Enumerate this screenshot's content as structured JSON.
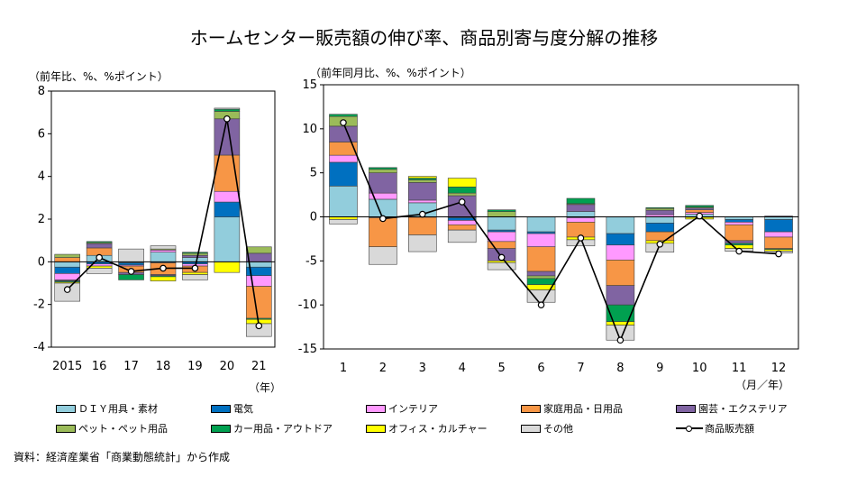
{
  "title": "ホームセンター販売額の伸び率、商品別寄与度分解の推移",
  "source": "資料：経済産業省「商業動態統計」から作成",
  "legend": [
    {
      "key": "diy",
      "label": "ＤＩＹ用具・素材",
      "color": "#92cddc"
    },
    {
      "key": "elec",
      "label": "電気",
      "color": "#0070c0"
    },
    {
      "key": "interior",
      "label": "インテリア",
      "color": "#ff99ff"
    },
    {
      "key": "household",
      "label": "家庭用品・日用品",
      "color": "#f79646"
    },
    {
      "key": "garden",
      "label": "園芸・エクステリア",
      "color": "#8064a2"
    },
    {
      "key": "pet",
      "label": "ペット・ペット用品",
      "color": "#9bbb59"
    },
    {
      "key": "car",
      "label": "カー用品・アウトドア",
      "color": "#00a050"
    },
    {
      "key": "office",
      "label": "オフィス・カルチャー",
      "color": "#ffff00"
    },
    {
      "key": "other",
      "label": "その他",
      "color": "#d9d9d9"
    },
    {
      "key": "total",
      "label": "商品販売額",
      "color": "#000000"
    }
  ],
  "chart_data": [
    {
      "type": "bar",
      "stacked": true,
      "ylabel": "（前年比、%、%ポイント）",
      "xlabel": "（年）",
      "ylim": [
        -4,
        8
      ],
      "yticks": [
        "8",
        "6",
        "4",
        "2",
        "0",
        "-2",
        "-4"
      ],
      "categories": [
        "2015",
        "16",
        "17",
        "18",
        "19",
        "20",
        "21"
      ],
      "series": [
        {
          "key": "diy",
          "values": [
            -0.25,
            0.3,
            -0.05,
            0.45,
            0.2,
            2.1,
            -0.25
          ]
        },
        {
          "key": "elec",
          "values": [
            -0.3,
            -0.1,
            -0.1,
            -0.05,
            -0.1,
            0.7,
            -0.4
          ]
        },
        {
          "key": "interior",
          "values": [
            -0.3,
            -0.1,
            -0.05,
            0.1,
            -0.1,
            0.5,
            -0.5
          ]
        },
        {
          "key": "household",
          "values": [
            0.2,
            0.35,
            -0.3,
            -0.55,
            -0.3,
            1.7,
            -1.5
          ]
        },
        {
          "key": "garden",
          "values": [
            -0.05,
            0.2,
            -0.1,
            -0.05,
            0.1,
            1.7,
            0.4
          ]
        },
        {
          "key": "pet",
          "values": [
            0.15,
            0.05,
            0.0,
            0.05,
            0.1,
            0.35,
            0.3
          ]
        },
        {
          "key": "car",
          "values": [
            -0.05,
            0.05,
            -0.25,
            -0.05,
            0.05,
            0.1,
            -0.05
          ]
        },
        {
          "key": "office",
          "values": [
            -0.05,
            -0.1,
            0.0,
            -0.2,
            -0.1,
            -0.5,
            -0.2
          ]
        },
        {
          "key": "other",
          "values": [
            -0.85,
            -0.25,
            0.6,
            0.15,
            -0.25,
            0.05,
            -0.6
          ]
        }
      ],
      "line": {
        "key": "total",
        "values": [
          -1.3,
          0.2,
          -0.45,
          -0.3,
          -0.3,
          6.7,
          -3.0
        ]
      }
    },
    {
      "type": "bar",
      "stacked": true,
      "ylabel": "（前年同月比、%、%ポイント）",
      "xlabel": "（月／年）",
      "ylim": [
        -15,
        15
      ],
      "yticks": [
        "15",
        "10",
        "5",
        "0",
        "-5",
        "-10",
        "-15"
      ],
      "categories": [
        "1",
        "2",
        "3",
        "4",
        "5",
        "6",
        "7",
        "8",
        "9",
        "10",
        "11",
        "12"
      ],
      "series": [
        {
          "key": "diy",
          "values": [
            3.5,
            2.0,
            1.6,
            -0.1,
            -1.5,
            -1.7,
            0.6,
            -1.9,
            -0.7,
            0.3,
            -0.3,
            -0.3
          ]
        },
        {
          "key": "elec",
          "values": [
            2.7,
            -0.1,
            -0.05,
            -0.3,
            -0.2,
            -0.2,
            -0.1,
            -1.3,
            -1.0,
            -0.05,
            -0.3,
            -1.4
          ]
        },
        {
          "key": "interior",
          "values": [
            0.8,
            0.7,
            0.3,
            -0.5,
            -1.1,
            -1.5,
            -0.5,
            -1.7,
            0.25,
            0.2,
            -0.3,
            -0.6
          ]
        },
        {
          "key": "household",
          "values": [
            1.5,
            -3.3,
            -2.0,
            -0.6,
            -0.8,
            -2.8,
            -1.7,
            -2.9,
            -1.0,
            0.3,
            -1.8,
            -1.3
          ]
        },
        {
          "key": "garden",
          "values": [
            1.8,
            2.3,
            2.0,
            2.4,
            -1.4,
            -0.5,
            0.8,
            -2.2,
            0.5,
            0.2,
            -0.3,
            0.1
          ]
        },
        {
          "key": "pet",
          "values": [
            1.1,
            0.4,
            0.3,
            0.3,
            0.6,
            -0.3,
            0.1,
            0.0,
            0.2,
            0.1,
            0.0,
            0.0
          ]
        },
        {
          "key": "car",
          "values": [
            0.25,
            0.2,
            0.2,
            0.7,
            0.2,
            -0.7,
            0.6,
            -1.9,
            0.1,
            0.2,
            -0.2,
            -0.1
          ]
        },
        {
          "key": "office",
          "values": [
            -0.3,
            0.0,
            0.2,
            1.0,
            -0.2,
            -0.6,
            -0.3,
            -0.4,
            -0.3,
            -0.2,
            -0.4,
            -0.2
          ]
        },
        {
          "key": "other",
          "values": [
            -0.5,
            -2.0,
            -1.9,
            -1.4,
            -0.8,
            -1.4,
            -0.7,
            -1.7,
            -1.0,
            0.0,
            -0.3,
            -0.2
          ]
        }
      ],
      "line": {
        "key": "total",
        "values": [
          10.7,
          -0.2,
          0.3,
          1.7,
          -4.6,
          -10.0,
          -2.4,
          -14.0,
          -3.1,
          0.1,
          -3.9,
          -4.2
        ]
      }
    }
  ]
}
